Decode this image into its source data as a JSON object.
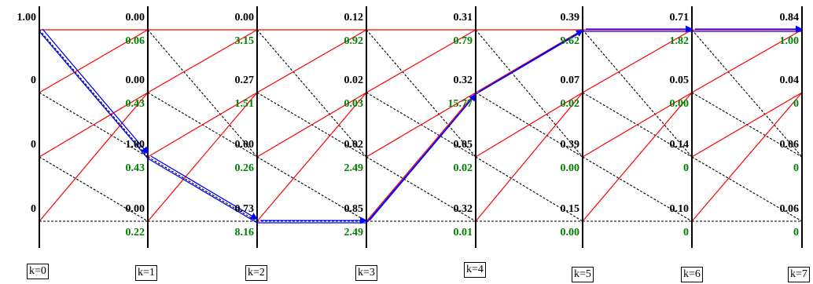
{
  "colors": {
    "background": "#ffffff",
    "metric_text": "#000000",
    "branch_metric_text": "#008000",
    "solid_branch": "#ff0000",
    "dashed_branch": "#000000",
    "survivor_path": "#0000ff"
  },
  "initial_metrics": [
    "1.00",
    "0",
    "0",
    "0"
  ],
  "stage_labels": [
    "k=0",
    "k=1",
    "k=2",
    "k=3",
    "k=4",
    "k=5",
    "k=6",
    "k=7"
  ],
  "path_metrics": [
    [
      "0.00",
      "0.00",
      "1.00",
      "0.00"
    ],
    [
      "0.00",
      "0.27",
      "0.00",
      "0.73"
    ],
    [
      "0.12",
      "0.02",
      "0.02",
      "0.85"
    ],
    [
      "0.31",
      "0.32",
      "0.05",
      "0.32"
    ],
    [
      "0.39",
      "0.07",
      "0.39",
      "0.15"
    ],
    [
      "0.71",
      "0.05",
      "0.14",
      "0.10"
    ],
    [
      "0.84",
      "0.04",
      "0.06",
      "0.06"
    ]
  ],
  "branch_metrics": [
    [
      "0.06",
      "0.43",
      "0.43",
      "0.22"
    ],
    [
      "3.15",
      "1.51",
      "0.26",
      "8.16"
    ],
    [
      "0.92",
      "0.03",
      "2.49",
      "2.49"
    ],
    [
      "0.79",
      "15.77",
      "0.02",
      "0.01"
    ],
    [
      "9.62",
      "0.02",
      "0.00",
      "0.00"
    ],
    [
      "1.82",
      "0.00",
      "0",
      "0"
    ],
    [
      "1.00",
      "0",
      "0",
      "0"
    ]
  ],
  "survivor_path_states": [
    0,
    2,
    3,
    3,
    1,
    0,
    0,
    0
  ]
}
